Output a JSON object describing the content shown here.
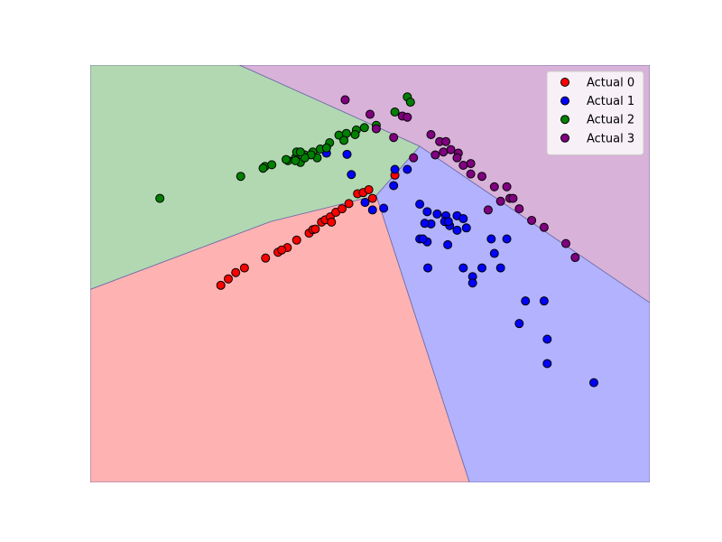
{
  "chart_data": {
    "type": "scatter",
    "title": "",
    "xlabel": "",
    "ylabel": "",
    "axes_visible": false,
    "xlim": [
      -4.5,
      4.5
    ],
    "ylim": [
      -3.6,
      3.6
    ],
    "legend": {
      "placement": "top-right"
    },
    "decision_regions": [
      {
        "class": "0",
        "color": "#ffb2b2",
        "polygon": [
          [
            -4.5,
            -0.27
          ],
          [
            -1.6,
            0.9
          ],
          [
            0.1,
            1.35
          ],
          [
            1.6,
            -3.6
          ],
          [
            -4.5,
            -3.6
          ]
        ]
      },
      {
        "class": "1",
        "color": "#b2b2ff",
        "polygon": [
          [
            0.1,
            1.35
          ],
          [
            1.6,
            -3.6
          ],
          [
            4.5,
            -3.6
          ],
          [
            4.5,
            -0.5
          ],
          [
            0.8,
            2.2
          ]
        ]
      },
      {
        "class": "2",
        "color": "#b2d8b2",
        "polygon": [
          [
            -4.5,
            -0.27
          ],
          [
            -1.6,
            0.9
          ],
          [
            0.1,
            1.35
          ],
          [
            0.8,
            2.2
          ],
          [
            -2.1,
            3.6
          ],
          [
            -4.5,
            3.6
          ]
        ]
      },
      {
        "class": "3",
        "color": "#d8b2d8",
        "polygon": [
          [
            -2.1,
            3.6
          ],
          [
            0.8,
            2.2
          ],
          [
            4.5,
            -0.5
          ],
          [
            4.5,
            3.6
          ]
        ]
      }
    ],
    "series": [
      {
        "name": "Actual 0",
        "color": "#ff0000",
        "points": [
          [
            -2.4,
            -0.2
          ],
          [
            -2.28,
            -0.09
          ],
          [
            -2.16,
            0.02
          ],
          [
            -2.02,
            0.1
          ],
          [
            -1.68,
            0.27
          ],
          [
            -1.48,
            0.37
          ],
          [
            -1.33,
            0.45
          ],
          [
            -1.18,
            0.58
          ],
          [
            -0.98,
            0.7
          ],
          [
            -0.92,
            0.76
          ],
          [
            -0.78,
            0.89
          ],
          [
            -0.72,
            0.93
          ],
          [
            -0.64,
            0.98
          ],
          [
            -0.55,
            1.06
          ],
          [
            -0.45,
            1.12
          ],
          [
            -0.34,
            1.21
          ],
          [
            -0.2,
            1.38
          ],
          [
            -0.11,
            1.4
          ],
          [
            -0.02,
            1.45
          ],
          [
            0.04,
            1.3
          ],
          [
            -0.62,
            0.89
          ],
          [
            0.4,
            1.7
          ],
          [
            -0.88,
            0.77
          ],
          [
            -1.42,
            0.41
          ]
        ]
      },
      {
        "name": "Actual 1",
        "color": "#0000ff",
        "points": [
          [
            -0.7,
            2.08
          ],
          [
            -0.37,
            2.06
          ],
          [
            -0.3,
            1.71
          ],
          [
            -0.08,
            1.23
          ],
          [
            0.04,
            1.1
          ],
          [
            0.22,
            1.13
          ],
          [
            0.38,
            1.52
          ],
          [
            0.4,
            1.8
          ],
          [
            0.6,
            1.8
          ],
          [
            0.8,
            1.2
          ],
          [
            0.92,
            1.07
          ],
          [
            1.08,
            1.03
          ],
          [
            1.22,
            1.0
          ],
          [
            1.28,
            0.83
          ],
          [
            1.4,
            0.75
          ],
          [
            1.55,
            0.79
          ],
          [
            1.4,
            1.0
          ],
          [
            1.25,
            0.5
          ],
          [
            0.98,
            0.86
          ],
          [
            0.92,
            0.55
          ],
          [
            1.2,
            0.9
          ],
          [
            1.26,
            0.9
          ],
          [
            1.5,
            0.95
          ],
          [
            0.88,
            0.87
          ],
          [
            0.8,
            0.6
          ],
          [
            0.85,
            0.6
          ],
          [
            0.93,
            0.1
          ],
          [
            2.2,
            0.6
          ],
          [
            2.0,
            0.35
          ],
          [
            1.8,
            0.1
          ],
          [
            1.65,
            -0.05
          ],
          [
            1.65,
            -0.16
          ],
          [
            2.1,
            0.1
          ],
          [
            1.95,
            0.6
          ],
          [
            2.5,
            -0.47
          ],
          [
            2.8,
            -0.47
          ],
          [
            2.4,
            -0.86
          ],
          [
            2.85,
            -1.13
          ],
          [
            2.85,
            -1.55
          ],
          [
            3.6,
            -1.88
          ],
          [
            1.5,
            0.1
          ]
        ]
      },
      {
        "name": "Actual 2",
        "color": "#008000",
        "points": [
          [
            -3.38,
            1.3
          ],
          [
            -2.08,
            1.68
          ],
          [
            -1.69,
            1.85
          ],
          [
            -1.58,
            1.88
          ],
          [
            -1.32,
            1.95
          ],
          [
            -1.2,
            2.0
          ],
          [
            -1.05,
            2.05
          ],
          [
            -0.92,
            2.1
          ],
          [
            -0.8,
            2.15
          ],
          [
            -0.65,
            2.26
          ],
          [
            -0.5,
            2.39
          ],
          [
            -0.38,
            2.42
          ],
          [
            -0.22,
            2.48
          ],
          [
            -0.09,
            2.52
          ],
          [
            0.1,
            2.56
          ],
          [
            0.4,
            2.79
          ],
          [
            0.6,
            3.05
          ],
          [
            0.65,
            2.96
          ],
          [
            -1.35,
            1.97
          ],
          [
            -1.18,
            2.1
          ],
          [
            -1.12,
            1.92
          ],
          [
            -0.85,
            2.0
          ],
          [
            -0.95,
            2.05
          ],
          [
            -0.7,
            2.17
          ],
          [
            -0.42,
            2.3
          ],
          [
            -0.24,
            2.4
          ],
          [
            -1.72,
            1.82
          ],
          [
            -1.05,
            2.0
          ],
          [
            -1.2,
            1.95
          ],
          [
            -1.12,
            2.1
          ]
        ]
      },
      {
        "name": "Actual 3",
        "color": "#800080",
        "points": [
          [
            -0.4,
            3.0
          ],
          [
            0.0,
            2.75
          ],
          [
            0.52,
            2.72
          ],
          [
            0.6,
            2.7
          ],
          [
            0.1,
            2.5
          ],
          [
            0.38,
            2.35
          ],
          [
            0.98,
            2.4
          ],
          [
            1.12,
            2.28
          ],
          [
            1.22,
            2.28
          ],
          [
            1.3,
            2.14
          ],
          [
            1.42,
            2.08
          ],
          [
            1.62,
            1.9
          ],
          [
            1.62,
            1.72
          ],
          [
            1.8,
            1.68
          ],
          [
            2.0,
            1.5
          ],
          [
            2.25,
            1.3
          ],
          [
            2.3,
            1.3
          ],
          [
            2.1,
            1.25
          ],
          [
            2.4,
            1.12
          ],
          [
            2.6,
            0.92
          ],
          [
            2.8,
            0.8
          ],
          [
            3.15,
            0.52
          ],
          [
            3.3,
            0.28
          ],
          [
            0.7,
            2.0
          ],
          [
            1.05,
            2.05
          ],
          [
            1.18,
            2.1
          ],
          [
            1.4,
            2.0
          ],
          [
            1.5,
            1.87
          ],
          [
            2.2,
            1.5
          ],
          [
            1.9,
            1.1
          ]
        ]
      }
    ]
  }
}
